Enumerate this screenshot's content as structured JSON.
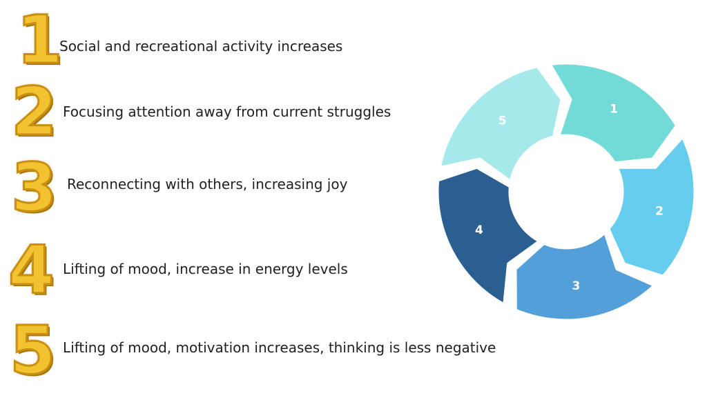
{
  "steps": [
    {
      "number": "1",
      "text": "Social and recreational activity increases"
    },
    {
      "number": "2",
      "text": "Focusing attention away from current struggles"
    },
    {
      "number": "3",
      "text": "Reconnecting with others, increasing joy"
    },
    {
      "number": "4",
      "text": "Lifting of mood, increase in energy levels"
    },
    {
      "number": "5",
      "text": "Lifting of mood, motivation increases, thinking is less negative"
    }
  ],
  "cycle": {
    "segments": [
      {
        "label": "1",
        "color": "#72dbd8"
      },
      {
        "label": "2",
        "color": "#67cdee"
      },
      {
        "label": "3",
        "color": "#539fd9"
      },
      {
        "label": "4",
        "color": "#2b5f91"
      },
      {
        "label": "5",
        "color": "#a6e9ea"
      }
    ]
  },
  "colors": {
    "numeral_gold": "#f2c230",
    "numeral_outline": "#c98f12"
  }
}
